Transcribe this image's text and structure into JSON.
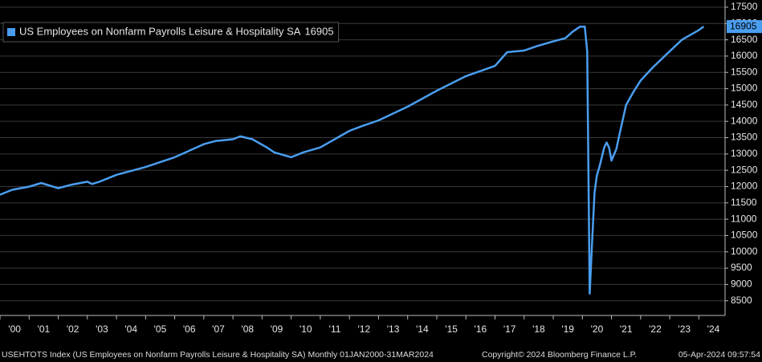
{
  "chart_data": {
    "type": "line",
    "x": [
      "2000-01",
      "2000-06",
      "2001-01",
      "2001-06",
      "2002-01",
      "2002-06",
      "2003-01",
      "2003-03",
      "2003-06",
      "2004-01",
      "2005-01",
      "2006-01",
      "2007-01",
      "2007-06",
      "2008-01",
      "2008-04",
      "2008-09",
      "2009-03",
      "2009-06",
      "2010-01",
      "2010-06",
      "2011-01",
      "2012-01",
      "2012-06",
      "2013-01",
      "2014-01",
      "2015-01",
      "2016-01",
      "2017-01",
      "2017-06",
      "2018-01",
      "2018-06",
      "2019-01",
      "2019-06",
      "2019-09",
      "2019-12",
      "2020-02",
      "2020-03",
      "2020-04",
      "2020-05",
      "2020-06",
      "2020-07",
      "2020-08",
      "2020-09",
      "2020-10",
      "2020-11",
      "2020-12",
      "2021-01",
      "2021-03",
      "2021-04",
      "2021-07",
      "2021-10",
      "2022-01",
      "2022-06",
      "2023-01",
      "2023-06",
      "2024-01",
      "2024-03"
    ],
    "series": [
      {
        "name": "US Employees on Nonfarm Payrolls Leisure & Hospitality SA",
        "color": "#4a9ef0",
        "values": [
          11750,
          11900,
          12000,
          12110,
          11950,
          12050,
          12150,
          12080,
          12150,
          12360,
          12600,
          12900,
          13300,
          13400,
          13450,
          13540,
          13450,
          13200,
          13050,
          12900,
          13050,
          13200,
          13710,
          13850,
          14030,
          14450,
          14940,
          15385,
          15700,
          16120,
          16170,
          16300,
          16450,
          16550,
          16750,
          16900,
          16905,
          16150,
          8720,
          10300,
          11800,
          12350,
          12600,
          12900,
          13200,
          13350,
          13200,
          12800,
          13150,
          13500,
          14500,
          14900,
          15250,
          15650,
          16150,
          16500,
          16800,
          16905
        ]
      }
    ],
    "xlim": [
      2000,
      2024.9
    ],
    "xticks": [
      {
        "value": 2000,
        "label": "'00"
      },
      {
        "value": 2001,
        "label": "'01"
      },
      {
        "value": 2002,
        "label": "'02"
      },
      {
        "value": 2003,
        "label": "'03"
      },
      {
        "value": 2004,
        "label": "'04"
      },
      {
        "value": 2005,
        "label": "'05"
      },
      {
        "value": 2006,
        "label": "'06"
      },
      {
        "value": 2007,
        "label": "'07"
      },
      {
        "value": 2008,
        "label": "'08"
      },
      {
        "value": 2009,
        "label": "'09"
      },
      {
        "value": 2010,
        "label": "'10"
      },
      {
        "value": 2011,
        "label": "'11"
      },
      {
        "value": 2012,
        "label": "'12"
      },
      {
        "value": 2013,
        "label": "'13"
      },
      {
        "value": 2014,
        "label": "'14"
      },
      {
        "value": 2015,
        "label": "'15"
      },
      {
        "value": 2016,
        "label": "'16"
      },
      {
        "value": 2017,
        "label": "'17"
      },
      {
        "value": 2018,
        "label": "'18"
      },
      {
        "value": 2019,
        "label": "'19"
      },
      {
        "value": 2020,
        "label": "'20"
      },
      {
        "value": 2021,
        "label": "'21"
      },
      {
        "value": 2022,
        "label": "'22"
      },
      {
        "value": 2023,
        "label": "'23"
      },
      {
        "value": 2024,
        "label": "'24"
      }
    ],
    "ylim": [
      8050,
      17720
    ],
    "yticks": [
      8500,
      9000,
      9500,
      10000,
      10500,
      11000,
      11500,
      12000,
      12500,
      13000,
      13500,
      14000,
      14500,
      15000,
      15500,
      16000,
      16500,
      17000,
      17500
    ],
    "grid": true,
    "legend": "top-left",
    "footer": {
      "left": "USEHTOTS Index (US Employees on Nonfarm Payrolls Leisure & Hospitality SA)  Monthly 01JAN2000-31MAR2024",
      "middle": "Copyright© 2024 Bloomberg Finance L.P.",
      "right": "05-Apr-2024 09:57:54"
    }
  }
}
